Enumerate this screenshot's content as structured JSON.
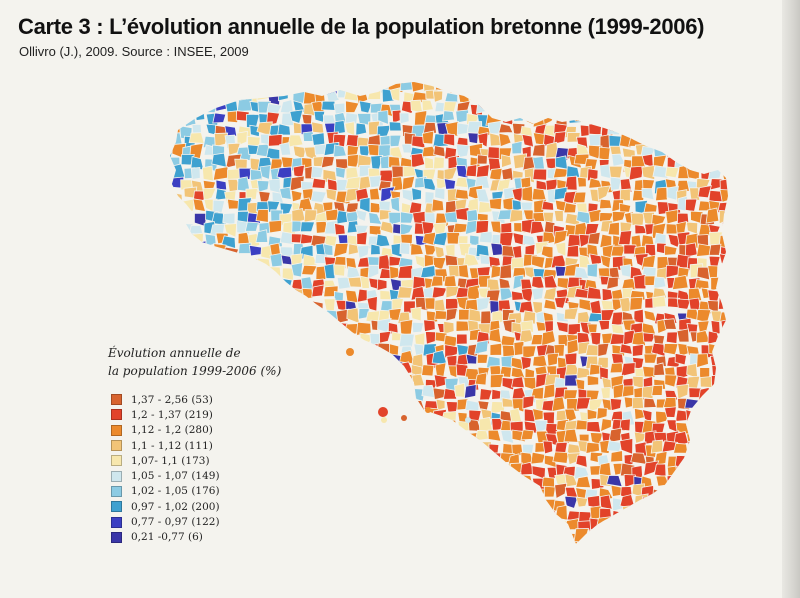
{
  "header": {
    "title": "Carte 3 : L’évolution annuelle de la population bretonne (1999-2006)",
    "subtitle": "Ollivro (J.), 2009. Source : INSEE, 2009"
  },
  "legend": {
    "title_line1": "Évolution annuelle de",
    "title_line2": "la population 1999-2006 (%)",
    "classes": [
      {
        "label": "1,37 - 2,56 (53)",
        "color": "#d8632e"
      },
      {
        "label": "1,2 - 1,37 (219)",
        "color": "#e2432a"
      },
      {
        "label": "1,12 - 1,2 (280)",
        "color": "#ec8a2c"
      },
      {
        "label": "1,1 - 1,12 (111)",
        "color": "#f2c477"
      },
      {
        "label": "1,07- 1,1 (173)",
        "color": "#f7e7ad"
      },
      {
        "label": "1,05 - 1,07 (149)",
        "color": "#cfe7ee"
      },
      {
        "label": "1,02 - 1,05 (176)",
        "color": "#8ccbe3"
      },
      {
        "label": "0,97 - 1,02 (200)",
        "color": "#3fa1d0"
      },
      {
        "label": "0,77 - 0,97 (122)",
        "color": "#3b3fc2"
      },
      {
        "label": "0,21 -0,77 (6)",
        "color": "#3a36a8"
      }
    ]
  }
}
